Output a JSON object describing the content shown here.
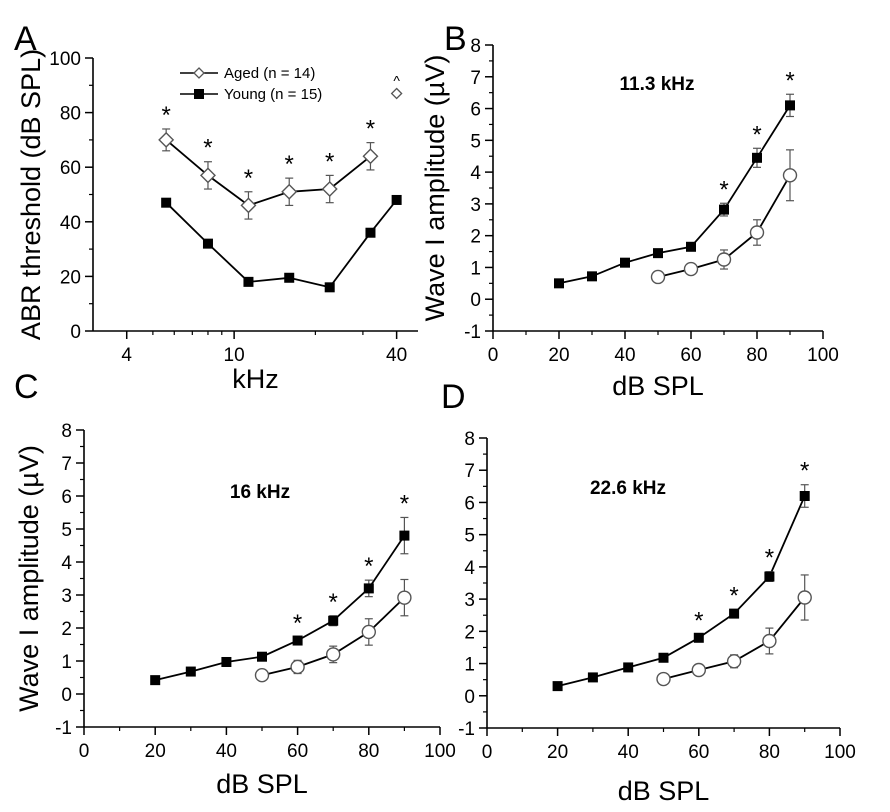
{
  "chart_data": [
    {
      "panel": "A",
      "type": "line",
      "xscale": "log",
      "xlabel": "kHz",
      "ylabel": "ABR threshold (dB SPL)",
      "xlim": [
        3,
        48
      ],
      "ylim": [
        0,
        100
      ],
      "xticks": [
        4,
        10,
        40
      ],
      "yticks": [
        0,
        20,
        40,
        60,
        80,
        100
      ],
      "x": [
        5.6,
        8,
        11.3,
        16,
        22.6,
        32,
        40
      ],
      "series": [
        {
          "name": "Aged (n = 14)",
          "marker": "open-diamond",
          "values": [
            70,
            57,
            46,
            51,
            52,
            64,
            null
          ],
          "errors": [
            4,
            5,
            5,
            5,
            5,
            5,
            null
          ]
        },
        {
          "name": "Young (n = 15)",
          "marker": "filled-square",
          "values": [
            47,
            32,
            18,
            19.5,
            16,
            36,
            48
          ],
          "errors": [
            1,
            1,
            1,
            1,
            1,
            1,
            1
          ]
        }
      ],
      "outlier": {
        "x": 40,
        "value": 87,
        "label": "^"
      },
      "significance": [
        5.6,
        8,
        11.3,
        16,
        22.6,
        32
      ],
      "legend": "top-center",
      "annotation": ""
    },
    {
      "panel": "B",
      "type": "line",
      "xlabel": "dB SPL",
      "ylabel": "Wave I amplitude (µV)",
      "xlim": [
        0,
        100
      ],
      "ylim": [
        -1,
        8
      ],
      "xticks": [
        0,
        20,
        40,
        60,
        80,
        100
      ],
      "yticks": [
        -1,
        0,
        1,
        2,
        3,
        4,
        5,
        6,
        7,
        8
      ],
      "annotation": "11.3 kHz",
      "x": [
        20,
        30,
        40,
        50,
        60,
        70,
        80,
        90
      ],
      "series": [
        {
          "name": "Young",
          "marker": "filled-square",
          "values": [
            0.5,
            0.72,
            1.15,
            1.45,
            1.65,
            2.82,
            4.45,
            6.1
          ],
          "errors": [
            0.05,
            0.05,
            0.08,
            0.1,
            0.1,
            0.2,
            0.3,
            0.35
          ]
        },
        {
          "name": "Aged",
          "marker": "open-circle",
          "values": [
            null,
            null,
            null,
            0.7,
            0.95,
            1.25,
            2.1,
            3.9
          ],
          "errors": [
            null,
            null,
            null,
            0.08,
            0.1,
            0.3,
            0.4,
            0.8
          ]
        }
      ],
      "significance": [
        70,
        80,
        90
      ]
    },
    {
      "panel": "C",
      "type": "line",
      "xlabel": "dB SPL",
      "ylabel": "Wave I amplitude (µV)",
      "xlim": [
        0,
        100
      ],
      "ylim": [
        -1,
        8
      ],
      "xticks": [
        0,
        20,
        40,
        60,
        80,
        100
      ],
      "yticks": [
        -1,
        0,
        1,
        2,
        3,
        4,
        5,
        6,
        7,
        8
      ],
      "annotation": "16 kHz",
      "x": [
        20,
        30,
        40,
        50,
        60,
        70,
        80,
        90
      ],
      "series": [
        {
          "name": "Young",
          "marker": "filled-square",
          "values": [
            0.42,
            0.68,
            0.97,
            1.13,
            1.62,
            2.22,
            3.2,
            4.8
          ],
          "errors": [
            0.05,
            0.05,
            0.08,
            0.1,
            0.1,
            0.15,
            0.25,
            0.55
          ]
        },
        {
          "name": "Aged",
          "marker": "open-circle",
          "values": [
            null,
            null,
            null,
            0.57,
            0.82,
            1.2,
            1.88,
            2.92
          ],
          "errors": [
            null,
            null,
            null,
            0.08,
            0.2,
            0.25,
            0.4,
            0.55
          ]
        }
      ],
      "significance": [
        60,
        70,
        80,
        90
      ]
    },
    {
      "panel": "D",
      "type": "line",
      "xlabel": "dB SPL",
      "ylabel": "",
      "xlim": [
        0,
        100
      ],
      "ylim": [
        -1,
        8
      ],
      "xticks": [
        0,
        20,
        40,
        60,
        80,
        100
      ],
      "yticks": [
        -1,
        0,
        1,
        2,
        3,
        4,
        5,
        6,
        7,
        8
      ],
      "annotation": "22.6 kHz",
      "x": [
        20,
        30,
        40,
        50,
        60,
        70,
        80,
        90
      ],
      "series": [
        {
          "name": "Young",
          "marker": "filled-square",
          "values": [
            0.3,
            0.57,
            0.88,
            1.18,
            1.8,
            2.55,
            3.7,
            6.2
          ],
          "errors": [
            0.05,
            0.05,
            0.07,
            0.08,
            0.1,
            0.12,
            0.15,
            0.35
          ]
        },
        {
          "name": "Aged",
          "marker": "open-circle",
          "values": [
            null,
            null,
            null,
            0.52,
            0.8,
            1.07,
            1.7,
            3.05
          ],
          "errors": [
            null,
            null,
            null,
            0.08,
            0.1,
            0.2,
            0.4,
            0.7
          ]
        }
      ],
      "significance": [
        60,
        70,
        80,
        90
      ]
    }
  ]
}
